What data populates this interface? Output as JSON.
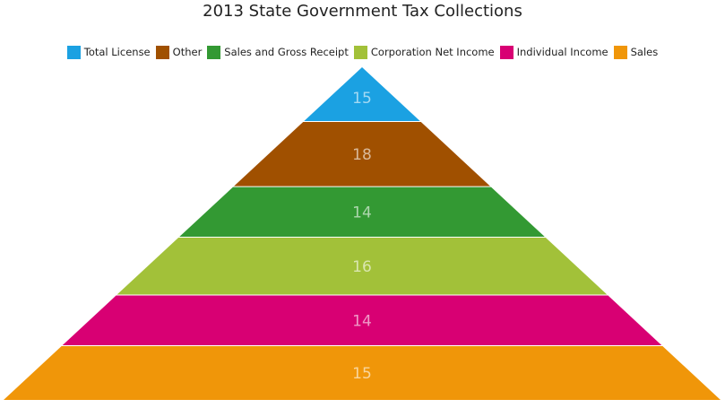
{
  "chart_data": {
    "type": "pyramid",
    "title": "2013 State Government Tax Collections",
    "legend_position": "top",
    "categories": [
      "Total License",
      "Other",
      "Sales and Gross Receipt",
      "Corporation Net Income",
      "Individual Income",
      "Sales"
    ],
    "values": [
      15,
      18,
      14,
      16,
      14,
      15
    ],
    "colors": [
      "#1ba1e2",
      "#a05000",
      "#339933",
      "#a2c139",
      "#d80073",
      "#f09609"
    ],
    "grid": false
  }
}
